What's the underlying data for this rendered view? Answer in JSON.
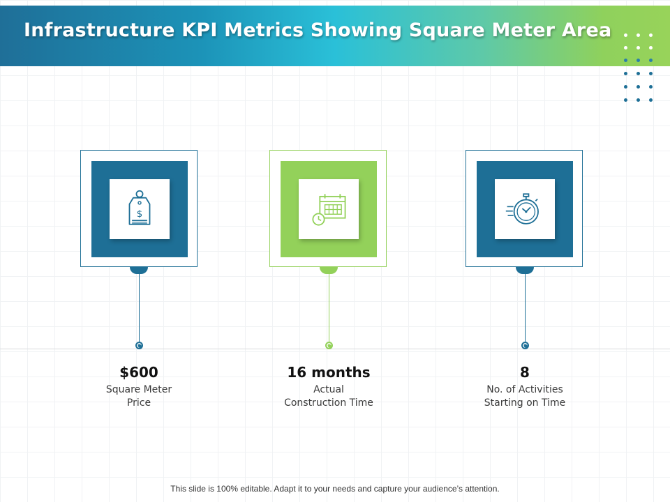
{
  "header": {
    "title": "Infrastructure KPI Metrics Showing Square Meter Area"
  },
  "colors": {
    "blue": "#1e6f96",
    "green": "#93d15a",
    "banner_start": "#1f6f98",
    "banner_end": "#98d35a"
  },
  "kpis": [
    {
      "value": "$600",
      "label_line1": "Square Meter",
      "label_line2": "Price",
      "icon": "price-tag-icon",
      "color": "#1e6f96"
    },
    {
      "value": "16 months",
      "label_line1": "Actual",
      "label_line2": "Construction Time",
      "icon": "calendar-clock-icon",
      "color": "#93d15a"
    },
    {
      "value": "8",
      "label_line1": "No. of Activities",
      "label_line2": "Starting on Time",
      "icon": "stopwatch-icon",
      "color": "#1e6f96"
    }
  ],
  "footer": {
    "text": "This slide is 100% editable. Adapt it to your needs and capture your audience’s attention."
  }
}
